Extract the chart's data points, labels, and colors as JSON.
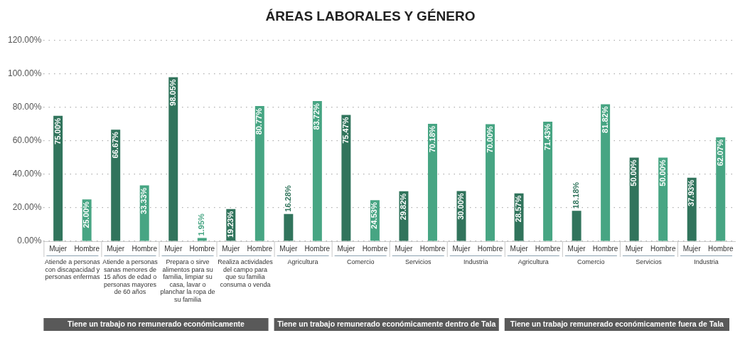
{
  "chart_data": {
    "type": "bar",
    "title": "ÁREAS LABORALES Y GÉNERO",
    "categories": [
      "Atiende a personas con discapacidad y personas enfermas",
      "Atiende a personas sanas menores de 15 años de edad o personas mayores de 60 años",
      "Prepara o sirve alimentos para su familia, limpiar su casa, lavar o planchar la ropa de su familia",
      "Realiza actividades del campo para que su familia consuma o venda",
      "Agricultura",
      "Comercio",
      "Servicios",
      "Industria",
      "Agricultura",
      "Comercio",
      "Servicios",
      "Industria"
    ],
    "series": [
      {
        "name": "Mujer",
        "color": "#31745c",
        "values": [
          75.0,
          66.67,
          98.05,
          19.23,
          16.28,
          75.47,
          29.82,
          30.0,
          28.57,
          18.18,
          50.0,
          37.93
        ],
        "value_labels": [
          "75.00%",
          "66.67%",
          "98.05%",
          "19.23%",
          "16.28%",
          "75.47%",
          "29.82%",
          "30.00%",
          "28.57%",
          "18.18%",
          "50.00%",
          "37.93%"
        ]
      },
      {
        "name": "Hombre",
        "color": "#47a583",
        "values": [
          25.0,
          33.33,
          1.95,
          80.77,
          83.72,
          24.53,
          70.18,
          70.0,
          71.43,
          81.82,
          50.0,
          62.07
        ],
        "value_labels": [
          "25.00%",
          "33.33%",
          "1.95%",
          "80.77%",
          "83.72%",
          "24.53%",
          "70.18%",
          "70.00%",
          "71.43%",
          "81.82%",
          "50.00%",
          "62.07%"
        ]
      }
    ],
    "ylim": [
      0,
      120
    ],
    "yticks": [
      {
        "value": 0,
        "label": "0.00%"
      },
      {
        "value": 20,
        "label": "20.00%"
      },
      {
        "value": 40,
        "label": "40.00%"
      },
      {
        "value": 60,
        "label": "60.00%"
      },
      {
        "value": 80,
        "label": "80.00%"
      },
      {
        "value": 100,
        "label": "100.00%"
      },
      {
        "value": 120,
        "label": "120.00%"
      }
    ],
    "grid": "y",
    "legend": false,
    "annotations": [
      "Tiene un trabajo no remunerado económicamente",
      "Tiene un trabajo remunerado económicamente dentro de Tala",
      "Tiene un trabajo remunerado económicamente fuera de Tala"
    ]
  }
}
